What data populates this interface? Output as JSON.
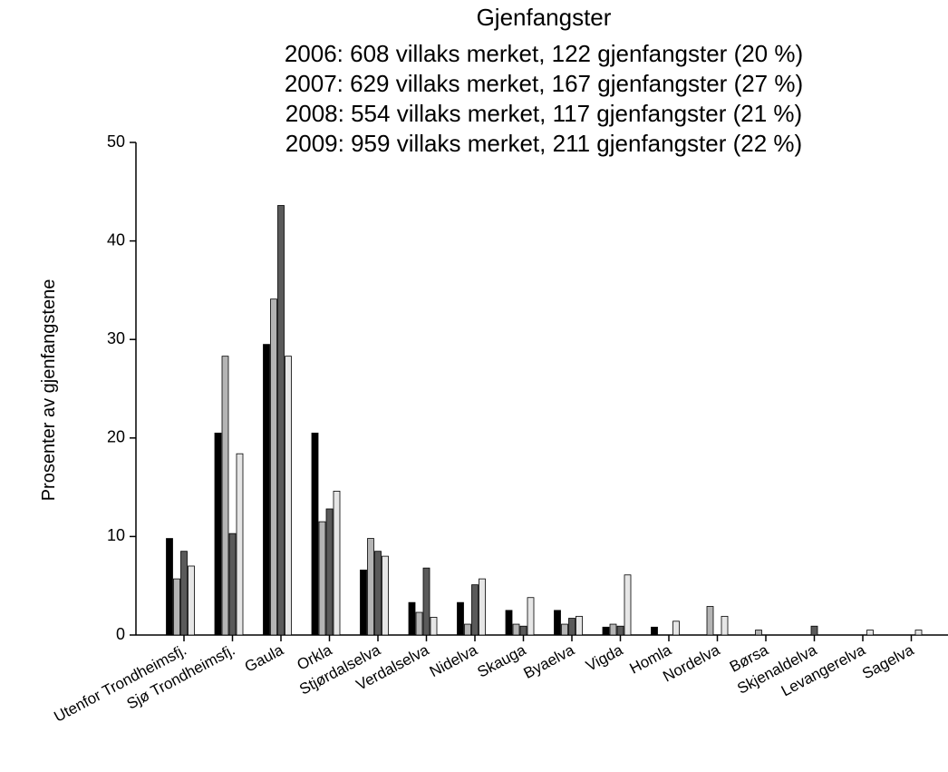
{
  "chart_data": {
    "type": "bar",
    "title": "Gjenfangster",
    "subtitle": [
      "2006: 608 villaks merket, 122 gjenfangster (20 %)",
      "2007: 629 villaks merket, 167 gjenfangster (27 %)",
      "2008: 554 villaks merket, 117 gjenfangster (21 %)",
      "2009: 959 villaks merket, 211 gjenfangster (22 %)"
    ],
    "y_label": "Prosenter av gjenfangstene",
    "categories": [
      "Utenfor Trondheimsfj.",
      "Sjø Trondheimsfj.",
      "Gaula",
      "Orkla",
      "Stjørdalselva",
      "Verdalselva",
      "Nidelva",
      "Skauga",
      "Byaelva",
      "Vigda",
      "Homla",
      "Nordelva",
      "Børsa",
      "Skjenaldelva",
      "Levangerelva",
      "Sagelva"
    ],
    "series": [
      {
        "color": "#000000",
        "values": [
          9.8,
          20.5,
          29.5,
          20.5,
          6.6,
          3.3,
          3.3,
          2.5,
          2.5,
          0.8,
          0.8,
          0,
          0,
          0,
          0,
          0
        ]
      },
      {
        "color": "#b4b4b4",
        "values": [
          5.7,
          28.3,
          34.1,
          11.5,
          9.8,
          2.3,
          1.1,
          1.1,
          1.1,
          1.1,
          0,
          2.9,
          0.5,
          0,
          0,
          0
        ]
      },
      {
        "color": "#5a5a5a",
        "values": [
          8.5,
          10.3,
          43.6,
          12.8,
          8.5,
          6.8,
          5.1,
          0.9,
          1.7,
          0.9,
          0,
          0,
          0,
          0.9,
          0,
          0
        ]
      },
      {
        "color": "#e6e6e6",
        "values": [
          7.0,
          18.4,
          28.3,
          14.6,
          8.0,
          1.8,
          5.7,
          3.8,
          1.9,
          6.1,
          1.4,
          1.9,
          0,
          0,
          0.5,
          0.5
        ]
      }
    ],
    "ylim": [
      0,
      50
    ],
    "yticks": [
      0,
      10,
      20,
      30,
      40,
      50
    ],
    "grid": false
  }
}
